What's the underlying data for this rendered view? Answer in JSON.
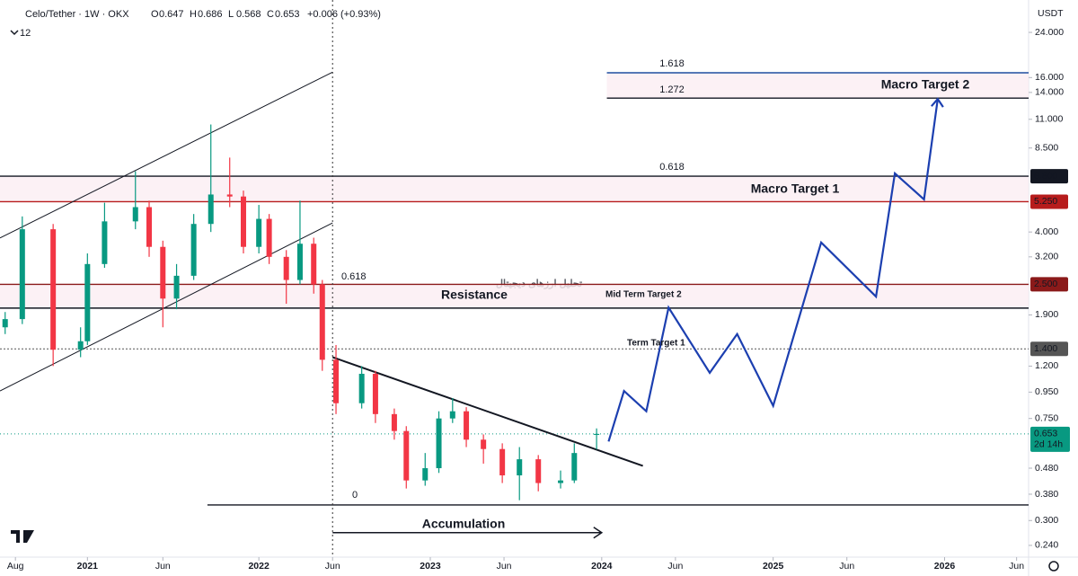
{
  "header": {
    "title": "Celo/Tether · 1W · OKX",
    "legend": [
      {
        "letter": "O",
        "value": 0.647
      },
      {
        "letter": "H",
        "value": 0.686
      },
      {
        "letter": "L",
        "value": 0.568
      },
      {
        "letter": "C",
        "value": 0.653
      }
    ],
    "change": "+0.006 (+0.93%)",
    "indicator_count": "12",
    "currency": "USDT"
  },
  "chart_data": {
    "type": "candlestick",
    "log_scale": true,
    "xlim": [
      2020.49,
      2026.49
    ],
    "ylim": [
      0.216,
      32.1
    ],
    "xticks": [
      {
        "value": 2020.58,
        "label": "Aug"
      },
      {
        "value": 2021.0,
        "label": "2021"
      },
      {
        "value": 2021.44,
        "label": "Jun"
      },
      {
        "value": 2022.0,
        "label": "2022"
      },
      {
        "value": 2022.43,
        "label": "Jun"
      },
      {
        "value": 2023.0,
        "label": "2023"
      },
      {
        "value": 2023.43,
        "label": "Jun"
      },
      {
        "value": 2024.0,
        "label": "2024"
      },
      {
        "value": 2024.43,
        "label": "Jun"
      },
      {
        "value": 2025.0,
        "label": "2025"
      },
      {
        "value": 2025.43,
        "label": "Jun"
      },
      {
        "value": 2026.0,
        "label": "2026"
      },
      {
        "value": 2026.42,
        "label": "Jun"
      }
    ],
    "yticks": [
      {
        "value": 24,
        "label": "24.000"
      },
      {
        "value": 16,
        "label": "16.000"
      },
      {
        "value": 14,
        "label": "14.000"
      },
      {
        "value": 11,
        "label": "11.000"
      },
      {
        "value": 8.5,
        "label": "8.500"
      },
      {
        "value": 4,
        "label": "4.000"
      },
      {
        "value": 3.2,
        "label": "3.200"
      },
      {
        "value": 1.9,
        "label": "1.900"
      },
      {
        "value": 1.2,
        "label": "1.200"
      },
      {
        "value": 0.95,
        "label": "0.950"
      },
      {
        "value": 0.75,
        "label": "0.750"
      },
      {
        "value": 0.48,
        "label": "0.480"
      },
      {
        "value": 0.38,
        "label": "0.380"
      },
      {
        "value": 0.3,
        "label": "0.300"
      },
      {
        "value": 0.24,
        "label": "0.240"
      }
    ],
    "up_color": "#089981",
    "down_color": "#f23645",
    "x": [
      2020.52,
      2020.62,
      2020.8,
      2020.96,
      2021.0,
      2021.1,
      2021.28,
      2021.36,
      2021.44,
      2021.52,
      2021.62,
      2021.72,
      2021.83,
      2021.91,
      2022.0,
      2022.06,
      2022.16,
      2022.24,
      2022.32,
      2022.37,
      2022.45,
      2022.6,
      2022.68,
      2022.79,
      2022.86,
      2022.97,
      2023.05,
      2023.13,
      2023.21,
      2023.31,
      2023.42,
      2023.52,
      2023.63,
      2023.76,
      2023.84,
      2023.97
    ],
    "open": [
      1.7,
      1.83,
      4.1,
      1.39,
      1.5,
      3.0,
      4.4,
      5.0,
      3.5,
      2.2,
      2.7,
      4.3,
      5.6,
      5.5,
      3.5,
      4.5,
      3.2,
      2.6,
      3.6,
      2.5,
      1.27,
      0.86,
      1.12,
      0.78,
      0.67,
      0.43,
      0.48,
      0.75,
      0.8,
      0.62,
      0.57,
      0.45,
      0.52,
      0.42,
      0.43,
      0.647
    ],
    "high": [
      1.95,
      4.6,
      4.3,
      1.7,
      3.3,
      5.2,
      6.9,
      5.3,
      3.7,
      3.0,
      4.7,
      10.5,
      7.8,
      5.8,
      5.1,
      4.7,
      3.4,
      5.3,
      3.8,
      2.6,
      1.45,
      1.2,
      1.15,
      0.82,
      0.7,
      0.55,
      0.8,
      0.9,
      0.83,
      0.65,
      0.6,
      0.58,
      0.54,
      0.47,
      0.6,
      0.686
    ],
    "low": [
      1.6,
      1.75,
      1.2,
      1.3,
      1.45,
      2.9,
      4.1,
      3.2,
      1.7,
      2.0,
      2.6,
      4.0,
      5.0,
      3.3,
      3.3,
      3.0,
      2.1,
      2.5,
      2.3,
      1.15,
      0.78,
      0.82,
      0.72,
      0.62,
      0.4,
      0.41,
      0.46,
      0.72,
      0.58,
      0.5,
      0.42,
      0.36,
      0.39,
      0.4,
      0.42,
      0.568
    ],
    "close": [
      1.83,
      4.1,
      1.39,
      1.5,
      3.0,
      4.4,
      5.0,
      3.5,
      2.2,
      2.7,
      4.3,
      5.6,
      5.5,
      3.5,
      4.5,
      3.2,
      2.6,
      3.6,
      2.5,
      1.27,
      0.86,
      1.12,
      0.78,
      0.67,
      0.43,
      0.48,
      0.75,
      0.8,
      0.62,
      0.57,
      0.45,
      0.52,
      0.42,
      0.43,
      0.55,
      0.653
    ],
    "last_price": {
      "value": 0.653,
      "label": "0.653",
      "countdown": "2d 14h",
      "color": "#089981"
    },
    "levels": [
      {
        "value": 16.7,
        "color": "#1e4fa0",
        "from": 2024.03
      },
      {
        "value": 13.3,
        "color": "#131722",
        "from": 2024.03
      },
      {
        "value": 6.6,
        "color": "#131722",
        "label": "6.600"
      },
      {
        "value": 5.25,
        "color": "#b71c1c",
        "label": "5.250"
      },
      {
        "value": 2.5,
        "color": "#8b1a1a",
        "label": "2.500"
      },
      {
        "value": 2.02,
        "color": "#131722"
      },
      {
        "value": 1.4,
        "color": "#555555",
        "dotted": true,
        "label": "1.400"
      },
      {
        "value": 0.345,
        "color": "#131722",
        "from": 2021.7
      }
    ],
    "projection": {
      "color": "#1c3fb0",
      "x": [
        2024.04,
        2024.13,
        2024.26,
        2024.39,
        2024.63,
        2024.79,
        2025.0,
        2025.28,
        2025.6,
        2025.71,
        2025.88,
        2025.96
      ],
      "values": [
        0.61,
        0.96,
        0.8,
        2.03,
        1.13,
        1.6,
        0.84,
        3.64,
        2.24,
        6.77,
        5.36,
        13.2
      ]
    },
    "drawings": [
      {
        "x": [
          2020.49,
          2022.43
        ],
        "values": [
          3.79,
          16.8
        ]
      },
      {
        "x": [
          2020.49,
          2022.43
        ],
        "values": [
          0.96,
          4.34
        ]
      },
      {
        "x": [
          2022.43,
          2024.24
        ],
        "values": [
          1.3,
          0.49
        ]
      }
    ],
    "accumulation_arrow": {
      "x": [
        2022.43,
        2024.0
      ],
      "values": [
        0.269,
        0.269
      ]
    },
    "divider_x": 2022.43,
    "annotations": [
      "1.618",
      "1.272",
      "Macro Target 2",
      "0.618",
      "Macro Target 1",
      "0.618",
      "Resistance",
      "Mid Term Target 2",
      "Term Target 1",
      "0",
      "Accumulation"
    ],
    "watermark": "تحلیل ارزهای دیجیتال"
  }
}
